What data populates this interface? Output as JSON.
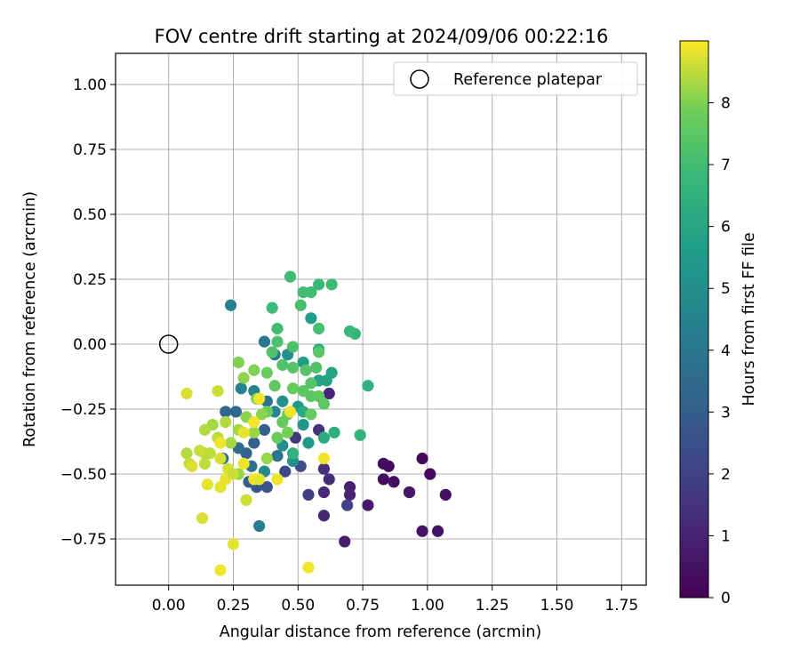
{
  "chart_data": {
    "type": "scatter",
    "title": "FOV centre drift starting at 2024/09/06 00:22:16",
    "xlabel": "Angular distance from reference (arcmin)",
    "ylabel": "Rotation from reference (arcmin)",
    "xlim": [
      -0.205,
      1.845
    ],
    "ylim": [
      -0.928,
      1.12
    ],
    "xticks": [
      0.0,
      0.25,
      0.5,
      0.75,
      1.0,
      1.25,
      1.5,
      1.75
    ],
    "xtick_labels": [
      "0.00",
      "0.25",
      "0.50",
      "0.75",
      "1.00",
      "1.25",
      "1.50",
      "1.75"
    ],
    "yticks": [
      -0.75,
      -0.5,
      -0.25,
      0.0,
      0.25,
      0.5,
      0.75,
      1.0
    ],
    "ytick_labels": [
      "−0.75",
      "−0.50",
      "−0.25",
      "0.00",
      "0.25",
      "0.50",
      "0.75",
      "1.00"
    ],
    "grid": true,
    "legend": {
      "position": "top-right",
      "entries": [
        {
          "label": "Reference platepar",
          "marker": "open-circle"
        }
      ]
    },
    "reference_point": {
      "x": 0.0,
      "y": 0.0
    },
    "colorbar": {
      "label": "Hours from first FF file",
      "colormap": "viridis",
      "range": [
        0,
        9
      ],
      "ticks": [
        0,
        1,
        2,
        3,
        4,
        5,
        6,
        7,
        8
      ]
    },
    "series": [
      {
        "points": [
          {
            "x": 0.98,
            "y": -0.44,
            "c": 0.2
          },
          {
            "x": 1.01,
            "y": -0.5,
            "c": 0.25
          },
          {
            "x": 0.83,
            "y": -0.46,
            "c": 0.3
          },
          {
            "x": 0.85,
            "y": -0.47,
            "c": 0.3
          },
          {
            "x": 0.83,
            "y": -0.52,
            "c": 0.35
          },
          {
            "x": 0.87,
            "y": -0.53,
            "c": 0.4
          },
          {
            "x": 0.93,
            "y": -0.57,
            "c": 0.45
          },
          {
            "x": 1.07,
            "y": -0.58,
            "c": 0.4
          },
          {
            "x": 0.98,
            "y": -0.72,
            "c": 0.5
          },
          {
            "x": 1.04,
            "y": -0.72,
            "c": 0.5
          },
          {
            "x": 0.93,
            "y": -0.57,
            "c": 0.6
          },
          {
            "x": 0.77,
            "y": -0.62,
            "c": 0.7
          },
          {
            "x": 0.68,
            "y": -0.76,
            "c": 0.8
          },
          {
            "x": 0.7,
            "y": -0.55,
            "c": 0.9
          },
          {
            "x": 0.7,
            "y": -0.58,
            "c": 1.0
          },
          {
            "x": 0.6,
            "y": -0.66,
            "c": 1.1
          },
          {
            "x": 0.6,
            "y": -0.57,
            "c": 1.2
          },
          {
            "x": 0.62,
            "y": -0.52,
            "c": 1.3
          },
          {
            "x": 0.6,
            "y": -0.48,
            "c": 1.4
          },
          {
            "x": 0.62,
            "y": -0.19,
            "c": 1.1
          },
          {
            "x": 0.54,
            "y": -0.58,
            "c": 1.9
          },
          {
            "x": 0.49,
            "y": -0.36,
            "c": 1.6
          },
          {
            "x": 0.58,
            "y": -0.33,
            "c": 1.5
          },
          {
            "x": 0.69,
            "y": -0.62,
            "c": 2.0
          },
          {
            "x": 0.45,
            "y": -0.49,
            "c": 2.3
          },
          {
            "x": 0.51,
            "y": -0.47,
            "c": 2.4
          },
          {
            "x": 0.38,
            "y": -0.55,
            "c": 2.6
          },
          {
            "x": 0.34,
            "y": -0.55,
            "c": 2.8
          },
          {
            "x": 0.31,
            "y": -0.53,
            "c": 2.9
          },
          {
            "x": 0.33,
            "y": -0.38,
            "c": 3.0
          },
          {
            "x": 0.37,
            "y": -0.33,
            "c": 3.1
          },
          {
            "x": 0.3,
            "y": -0.42,
            "c": 3.2
          },
          {
            "x": 0.22,
            "y": -0.26,
            "c": 3.3
          },
          {
            "x": 0.26,
            "y": -0.26,
            "c": 3.4
          },
          {
            "x": 0.21,
            "y": -0.44,
            "c": 3.5
          },
          {
            "x": 0.27,
            "y": -0.4,
            "c": 3.6
          },
          {
            "x": 0.32,
            "y": -0.47,
            "c": 3.7
          },
          {
            "x": 0.42,
            "y": -0.43,
            "c": 3.8
          },
          {
            "x": 0.37,
            "y": 0.01,
            "c": 4.0
          },
          {
            "x": 0.41,
            "y": -0.04,
            "c": 4.1
          },
          {
            "x": 0.38,
            "y": -0.22,
            "c": 3.9
          },
          {
            "x": 0.24,
            "y": 0.15,
            "c": 4.4
          },
          {
            "x": 0.35,
            "y": -0.7,
            "c": 4.3
          },
          {
            "x": 0.28,
            "y": -0.17,
            "c": 4.5
          },
          {
            "x": 0.33,
            "y": -0.18,
            "c": 4.6
          },
          {
            "x": 0.41,
            "y": -0.26,
            "c": 4.7
          },
          {
            "x": 0.37,
            "y": -0.49,
            "c": 4.8
          },
          {
            "x": 0.44,
            "y": -0.39,
            "c": 4.9
          },
          {
            "x": 0.46,
            "y": -0.04,
            "c": 5.0
          },
          {
            "x": 0.44,
            "y": -0.22,
            "c": 5.1
          },
          {
            "x": 0.48,
            "y": -0.45,
            "c": 5.2
          },
          {
            "x": 0.52,
            "y": -0.31,
            "c": 5.3
          },
          {
            "x": 0.54,
            "y": -0.38,
            "c": 5.4
          },
          {
            "x": 0.5,
            "y": -0.24,
            "c": 5.5
          },
          {
            "x": 0.52,
            "y": -0.07,
            "c": 5.6
          },
          {
            "x": 0.55,
            "y": 0.1,
            "c": 5.7
          },
          {
            "x": 0.58,
            "y": -0.14,
            "c": 5.8
          },
          {
            "x": 0.61,
            "y": -0.14,
            "c": 5.9
          },
          {
            "x": 0.63,
            "y": -0.11,
            "c": 6.0
          },
          {
            "x": 0.58,
            "y": -0.02,
            "c": 6.1
          },
          {
            "x": 0.52,
            "y": -0.26,
            "c": 6.2
          },
          {
            "x": 0.6,
            "y": -0.36,
            "c": 6.3
          },
          {
            "x": 0.64,
            "y": -0.34,
            "c": 6.4
          },
          {
            "x": 0.48,
            "y": -0.42,
            "c": 6.5
          },
          {
            "x": 0.77,
            "y": -0.16,
            "c": 6.5
          },
          {
            "x": 0.74,
            "y": -0.35,
            "c": 6.6
          },
          {
            "x": 0.72,
            "y": 0.04,
            "c": 6.7
          },
          {
            "x": 0.7,
            "y": 0.05,
            "c": 6.8
          },
          {
            "x": 0.63,
            "y": 0.23,
            "c": 6.9
          },
          {
            "x": 0.58,
            "y": 0.23,
            "c": 6.8
          },
          {
            "x": 0.55,
            "y": 0.2,
            "c": 6.9
          },
          {
            "x": 0.52,
            "y": 0.2,
            "c": 7.0
          },
          {
            "x": 0.47,
            "y": 0.26,
            "c": 7.0
          },
          {
            "x": 0.51,
            "y": 0.15,
            "c": 7.1
          },
          {
            "x": 0.58,
            "y": 0.06,
            "c": 7.1
          },
          {
            "x": 0.42,
            "y": 0.06,
            "c": 7.0
          },
          {
            "x": 0.42,
            "y": 0.01,
            "c": 7.2
          },
          {
            "x": 0.48,
            "y": -0.01,
            "c": 7.2
          },
          {
            "x": 0.4,
            "y": 0.14,
            "c": 6.9
          },
          {
            "x": 0.4,
            "y": -0.03,
            "c": 7.3
          },
          {
            "x": 0.44,
            "y": -0.08,
            "c": 7.3
          },
          {
            "x": 0.48,
            "y": -0.09,
            "c": 7.4
          },
          {
            "x": 0.53,
            "y": -0.1,
            "c": 7.4
          },
          {
            "x": 0.58,
            "y": -0.03,
            "c": 7.5
          },
          {
            "x": 0.57,
            "y": -0.09,
            "c": 7.3
          },
          {
            "x": 0.55,
            "y": -0.15,
            "c": 7.4
          },
          {
            "x": 0.55,
            "y": -0.2,
            "c": 7.5
          },
          {
            "x": 0.58,
            "y": -0.2,
            "c": 7.6
          },
          {
            "x": 0.6,
            "y": -0.23,
            "c": 7.6
          },
          {
            "x": 0.52,
            "y": -0.18,
            "c": 7.5
          },
          {
            "x": 0.48,
            "y": -0.17,
            "c": 7.7
          },
          {
            "x": 0.46,
            "y": -0.27,
            "c": 7.8
          },
          {
            "x": 0.55,
            "y": -0.27,
            "c": 7.7
          },
          {
            "x": 0.41,
            "y": -0.16,
            "c": 7.6
          },
          {
            "x": 0.44,
            "y": -0.3,
            "c": 7.7
          },
          {
            "x": 0.42,
            "y": -0.36,
            "c": 7.8
          },
          {
            "x": 0.46,
            "y": -0.34,
            "c": 7.9
          },
          {
            "x": 0.38,
            "y": -0.26,
            "c": 7.8
          },
          {
            "x": 0.38,
            "y": -0.11,
            "c": 7.8
          },
          {
            "x": 0.34,
            "y": -0.21,
            "c": 7.9
          },
          {
            "x": 0.33,
            "y": -0.1,
            "c": 8.0
          },
          {
            "x": 0.29,
            "y": -0.13,
            "c": 8.1
          },
          {
            "x": 0.27,
            "y": -0.07,
            "c": 8.0
          },
          {
            "x": 0.36,
            "y": -0.27,
            "c": 8.1
          },
          {
            "x": 0.3,
            "y": -0.28,
            "c": 8.1
          },
          {
            "x": 0.38,
            "y": -0.44,
            "c": 8.2
          },
          {
            "x": 0.33,
            "y": -0.34,
            "c": 8.2
          },
          {
            "x": 0.27,
            "y": -0.33,
            "c": 8.3
          },
          {
            "x": 0.24,
            "y": -0.38,
            "c": 8.3
          },
          {
            "x": 0.27,
            "y": -0.5,
            "c": 8.2
          },
          {
            "x": 0.22,
            "y": -0.3,
            "c": 8.4
          },
          {
            "x": 0.17,
            "y": -0.31,
            "c": 8.3
          },
          {
            "x": 0.14,
            "y": -0.33,
            "c": 8.4
          },
          {
            "x": 0.19,
            "y": -0.36,
            "c": 8.5
          },
          {
            "x": 0.14,
            "y": -0.42,
            "c": 8.4
          },
          {
            "x": 0.16,
            "y": -0.42,
            "c": 8.5
          },
          {
            "x": 0.14,
            "y": -0.46,
            "c": 8.5
          },
          {
            "x": 0.12,
            "y": -0.41,
            "c": 8.6
          },
          {
            "x": 0.07,
            "y": -0.42,
            "c": 8.4
          },
          {
            "x": 0.08,
            "y": -0.46,
            "c": 8.6
          },
          {
            "x": 0.09,
            "y": -0.47,
            "c": 8.7
          },
          {
            "x": 0.07,
            "y": -0.19,
            "c": 8.7
          },
          {
            "x": 0.19,
            "y": -0.18,
            "c": 8.6
          },
          {
            "x": 0.2,
            "y": -0.44,
            "c": 8.7
          },
          {
            "x": 0.23,
            "y": -0.48,
            "c": 8.7
          },
          {
            "x": 0.2,
            "y": -0.55,
            "c": 8.8
          },
          {
            "x": 0.22,
            "y": -0.52,
            "c": 8.8
          },
          {
            "x": 0.25,
            "y": -0.5,
            "c": 8.6
          },
          {
            "x": 0.15,
            "y": -0.54,
            "c": 8.8
          },
          {
            "x": 0.13,
            "y": -0.67,
            "c": 8.7
          },
          {
            "x": 0.25,
            "y": -0.77,
            "c": 8.8
          },
          {
            "x": 0.2,
            "y": -0.87,
            "c": 8.9
          },
          {
            "x": 0.54,
            "y": -0.86,
            "c": 8.9
          },
          {
            "x": 0.3,
            "y": -0.6,
            "c": 8.6
          },
          {
            "x": 0.29,
            "y": -0.46,
            "c": 8.9
          },
          {
            "x": 0.33,
            "y": -0.52,
            "c": 8.9
          },
          {
            "x": 0.35,
            "y": -0.52,
            "c": 8.8
          },
          {
            "x": 0.42,
            "y": -0.52,
            "c": 8.9
          },
          {
            "x": 0.33,
            "y": -0.3,
            "c": 8.9
          },
          {
            "x": 0.35,
            "y": -0.21,
            "c": 8.9
          },
          {
            "x": 0.47,
            "y": -0.26,
            "c": 8.9
          },
          {
            "x": 0.6,
            "y": -0.44,
            "c": 8.9
          },
          {
            "x": 0.29,
            "y": -0.34,
            "c": 8.8
          },
          {
            "x": 0.2,
            "y": -0.38,
            "c": 8.9
          }
        ]
      }
    ]
  }
}
